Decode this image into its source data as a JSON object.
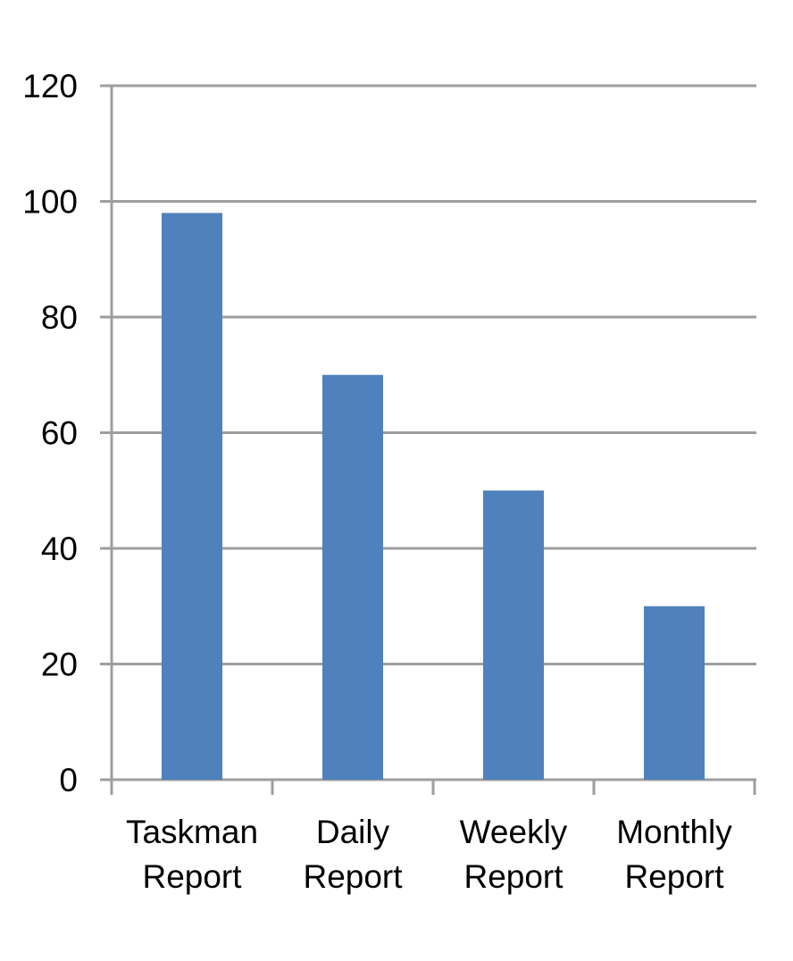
{
  "chart_data": {
    "type": "bar",
    "title": "",
    "xlabel": "",
    "ylabel": "",
    "categories": [
      "Taskman Report",
      "Daily Report",
      "Weekly Report",
      "Monthly Report"
    ],
    "values": [
      98,
      70,
      50,
      30
    ],
    "ylim": [
      0,
      120
    ],
    "yticks": [
      0,
      20,
      40,
      60,
      80,
      100,
      120
    ],
    "grid": true,
    "legend": false,
    "legend_position": "none",
    "bar_color": "#4F81BD",
    "axis_color": "#9E9E9E",
    "label_color": "#000000",
    "background": "#FFFFFF"
  }
}
